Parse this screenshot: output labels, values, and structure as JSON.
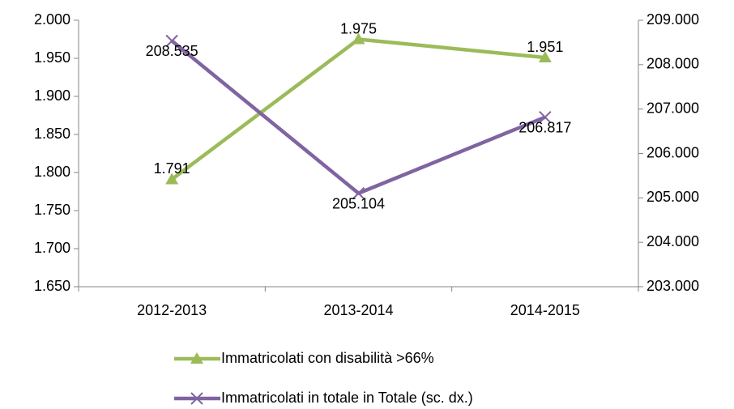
{
  "chart_data": {
    "type": "line",
    "categories": [
      "2012-2013",
      "2013-2014",
      "2014-2015"
    ],
    "series": [
      {
        "name": "Immatricolati con disabilità >66%",
        "color": "#9bbb59",
        "marker": "triangle",
        "values": [
          1791,
          1975,
          1951
        ],
        "value_labels": [
          "1.791",
          "1.975",
          "1.951"
        ]
      },
      {
        "name": "Immatricolati in totale in Totale (sc. dx.)",
        "color": "#8064a2",
        "marker": "x",
        "axis": "y2",
        "values": [
          208535,
          205104,
          206817
        ],
        "value_labels": [
          "208.535",
          "205.104",
          "206.817"
        ]
      }
    ],
    "ylim": [
      1650,
      2000
    ],
    "yticks": [
      {
        "value": 1650,
        "label": "1.650"
      },
      {
        "value": 1700,
        "label": "1.700"
      },
      {
        "value": 1750,
        "label": "1.750"
      },
      {
        "value": 1800,
        "label": "1.800"
      },
      {
        "value": 1850,
        "label": "1.850"
      },
      {
        "value": 1900,
        "label": "1.900"
      },
      {
        "value": 1950,
        "label": "1.950"
      },
      {
        "value": 2000,
        "label": "2.000"
      }
    ],
    "y2lim": [
      203000,
      209000
    ],
    "y2ticks": [
      {
        "value": 203000,
        "label": "203.000"
      },
      {
        "value": 204000,
        "label": "204.000"
      },
      {
        "value": 205000,
        "label": "205.000"
      },
      {
        "value": 206000,
        "label": "206.000"
      },
      {
        "value": 207000,
        "label": "207.000"
      },
      {
        "value": 208000,
        "label": "208.000"
      },
      {
        "value": 209000,
        "label": "209.000"
      }
    ],
    "legend": "bottom",
    "grid": false
  }
}
